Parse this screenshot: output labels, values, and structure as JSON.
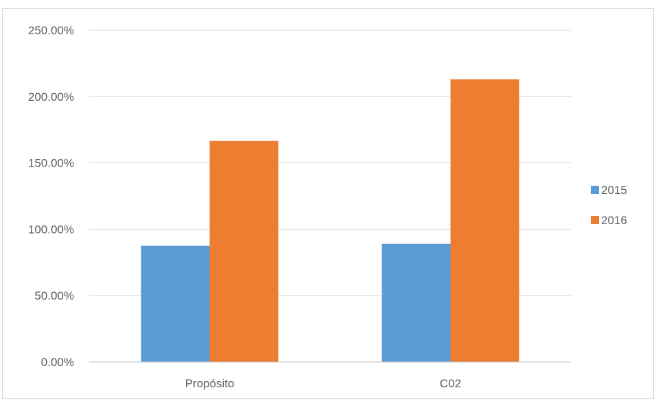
{
  "chart_data": {
    "type": "bar",
    "categories": [
      "Propósito",
      "C02"
    ],
    "series": [
      {
        "name": "2015",
        "values": [
          87.5,
          89.0
        ],
        "color": "#5b9bd5"
      },
      {
        "name": "2016",
        "values": [
          166.5,
          213.0
        ],
        "color": "#ed7d31"
      }
    ],
    "ylim": [
      0,
      250
    ],
    "yticks": [
      0,
      50,
      100,
      150,
      200,
      250
    ],
    "ytick_labels": [
      "0.00%",
      "50.00%",
      "100.00%",
      "150.00%",
      "200.00%",
      "250.00%"
    ],
    "title": "",
    "xlabel": "",
    "ylabel": "",
    "grid": true,
    "legend_position": "right",
    "gridline_color": "#d9d9d9",
    "axis_color": "#bfbfbf"
  }
}
